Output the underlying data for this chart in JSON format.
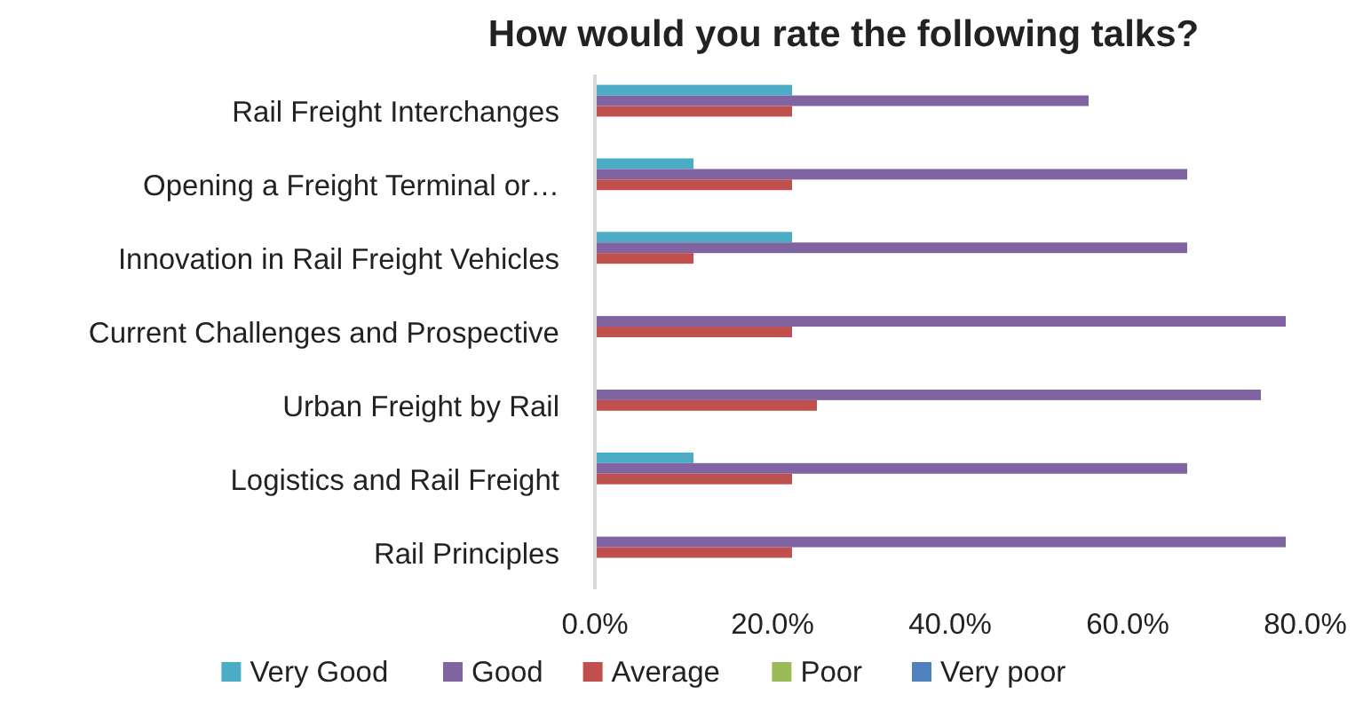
{
  "chart_data": {
    "type": "bar",
    "orientation": "horizontal",
    "title": "How would you rate the following talks?",
    "categories": [
      "Rail Freight Interchanges",
      "Opening a Freight Terminal or…",
      "Innovation in Rail Freight Vehicles",
      "Current Challenges and Prospective",
      "Urban Freight by Rail",
      "Logistics and Rail Freight",
      "Rail Principles"
    ],
    "series": [
      {
        "name": "Very Good",
        "color": "#4bacc6",
        "values": [
          22.2,
          11.1,
          22.2,
          0,
          0,
          11.1,
          0
        ]
      },
      {
        "name": "Good",
        "color": "#8064a2",
        "values": [
          55.6,
          66.7,
          66.7,
          77.8,
          75,
          66.7,
          77.8
        ]
      },
      {
        "name": "Average",
        "color": "#c0504d",
        "values": [
          22.2,
          22.2,
          11.1,
          22.2,
          25,
          22.2,
          22.2
        ]
      },
      {
        "name": "Poor",
        "color": "#9bbb59",
        "values": [
          0,
          0,
          0,
          0,
          0,
          0,
          0
        ]
      },
      {
        "name": "Very poor",
        "color": "#4f81bd",
        "values": [
          0,
          0,
          0,
          0,
          0,
          0,
          0
        ]
      }
    ],
    "xlim": [
      0,
      80
    ],
    "xticks": [
      {
        "value": 0,
        "label": "0.0%"
      },
      {
        "value": 20,
        "label": "20.0%"
      },
      {
        "value": 40,
        "label": "40.0%"
      },
      {
        "value": 60,
        "label": "60.0%"
      },
      {
        "value": 80,
        "label": "80.0%"
      }
    ],
    "grid": false,
    "legend": "bottom"
  }
}
